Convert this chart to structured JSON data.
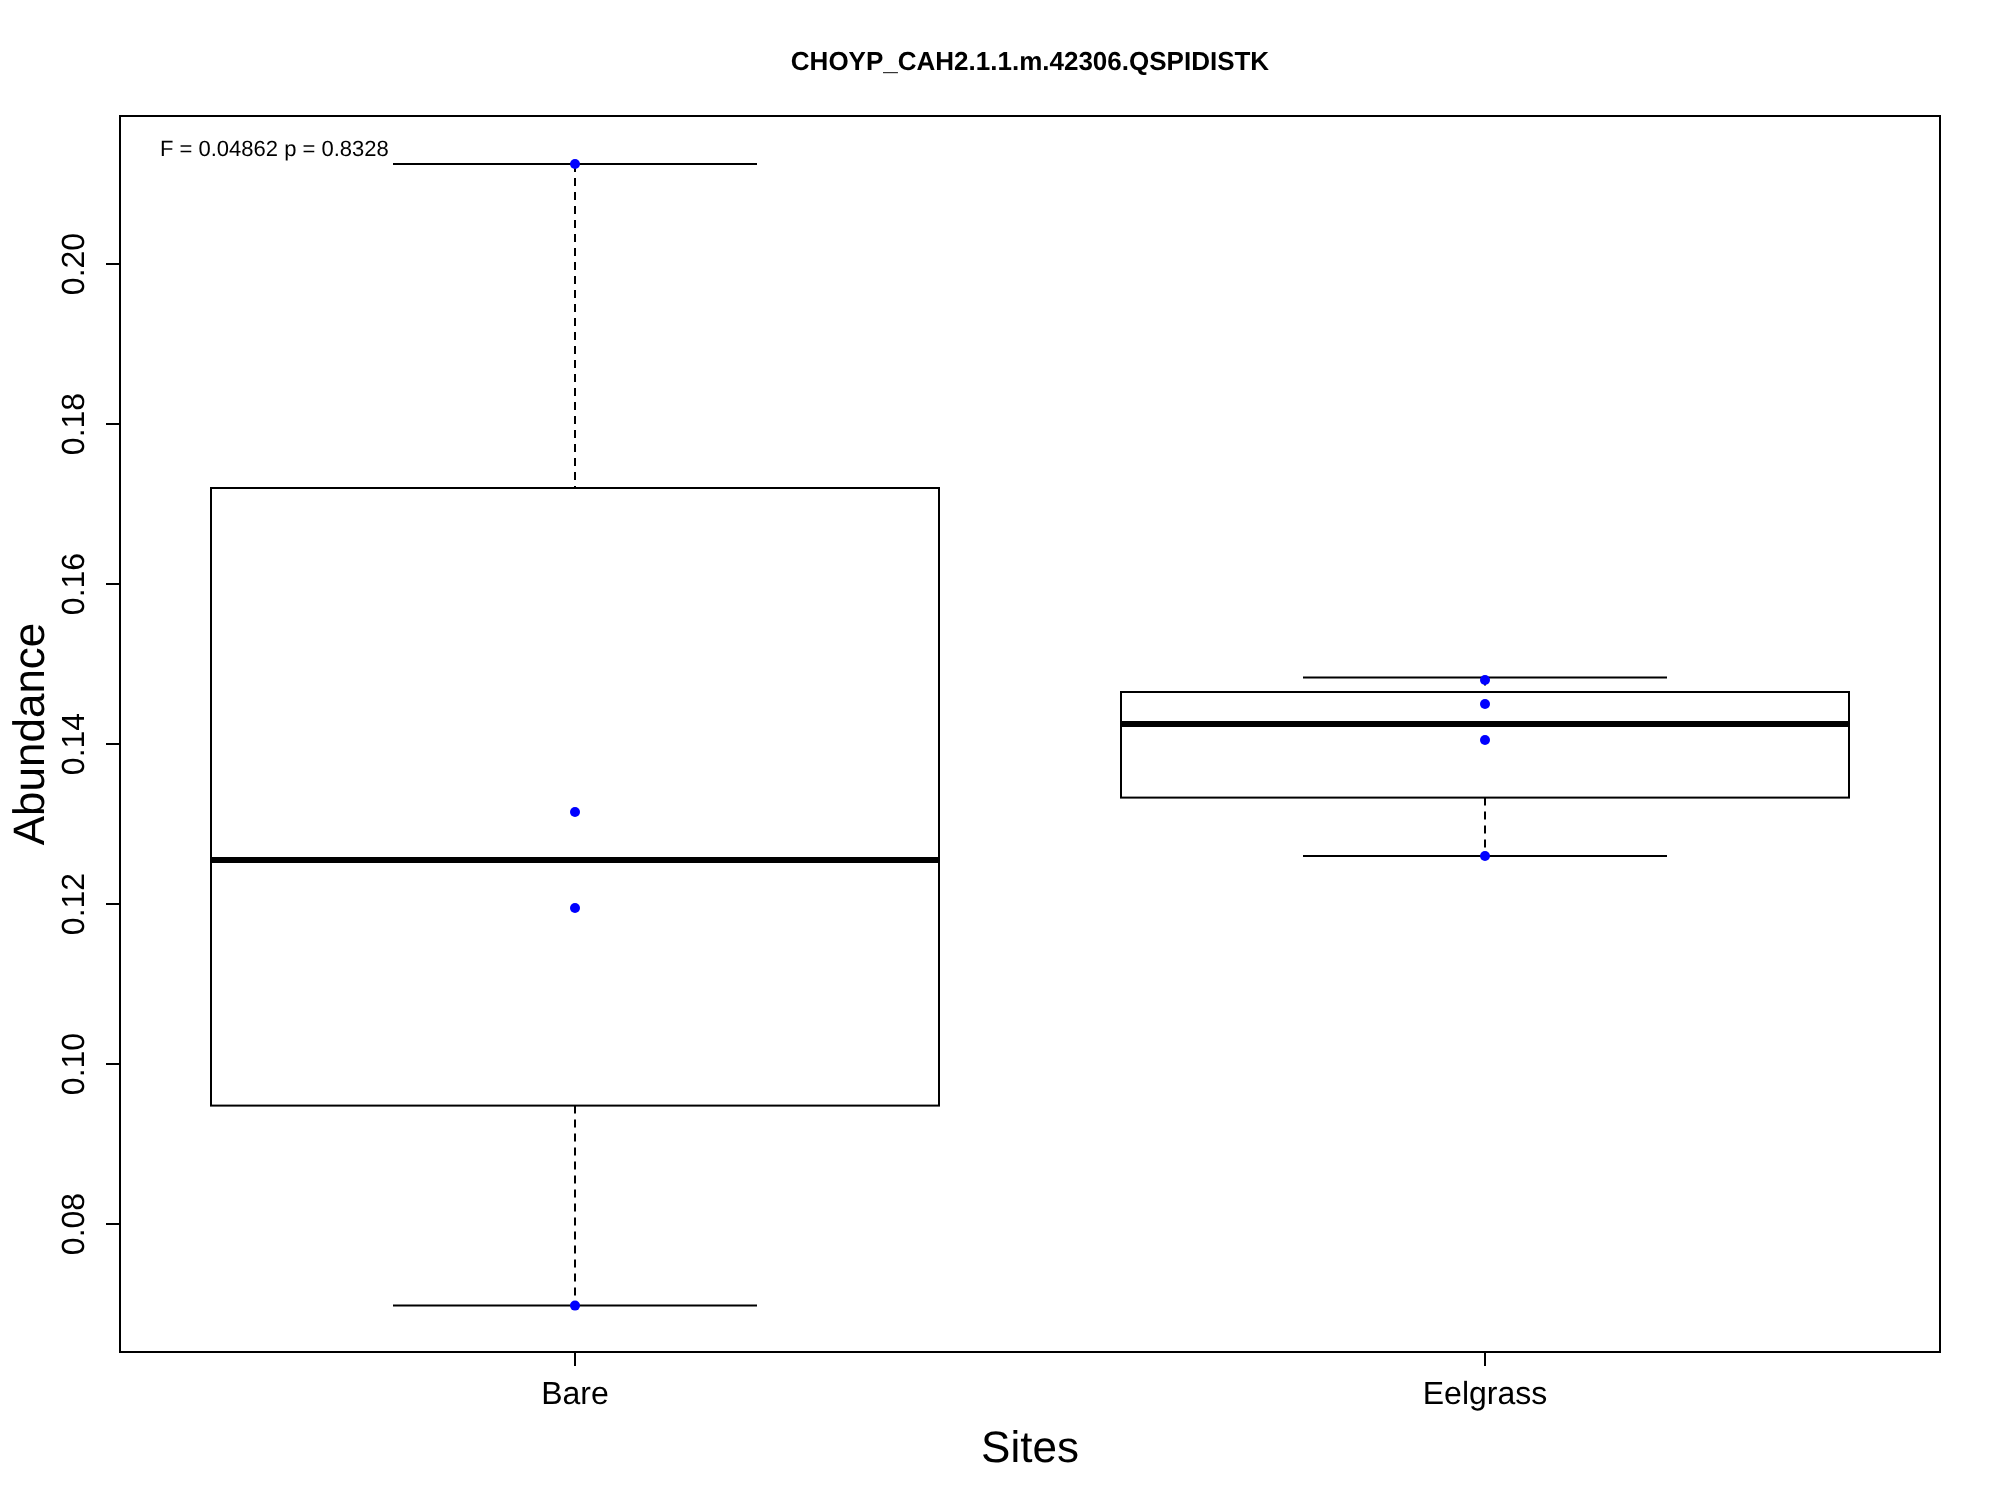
{
  "chart_data": {
    "type": "box",
    "title": "CHOYP_CAH2.1.1.m.42306.QSPIDISTK",
    "xlabel": "Sites",
    "ylabel": "Abundance",
    "categories": [
      "Bare",
      "Eelgrass"
    ],
    "boxes": [
      {
        "low": 0.0698,
        "q1": 0.0948,
        "median": 0.1255,
        "q3": 0.172,
        "high": 0.2125
      },
      {
        "low": 0.126,
        "q1": 0.1333,
        "median": 0.1425,
        "q3": 0.1465,
        "high": 0.1483
      }
    ],
    "ylim": [
      0.064,
      0.2185
    ],
    "yticks": [
      {
        "value": 0.08,
        "label": "0.08"
      },
      {
        "value": 0.1,
        "label": "0.10"
      },
      {
        "value": 0.12,
        "label": "0.12"
      },
      {
        "value": 0.14,
        "label": "0.14"
      },
      {
        "value": 0.16,
        "label": "0.16"
      },
      {
        "value": 0.18,
        "label": "0.18"
      },
      {
        "value": 0.2,
        "label": "0.20"
      }
    ],
    "series": [
      {
        "type": "scatter",
        "color": "#0000ff",
        "x": [
          "Bare",
          "Bare",
          "Bare",
          "Bare",
          "Eelgrass",
          "Eelgrass",
          "Eelgrass",
          "Eelgrass"
        ],
        "values": [
          0.2125,
          0.1315,
          0.1195,
          0.0698,
          0.148,
          0.145,
          0.1405,
          0.126
        ]
      }
    ],
    "annotations": [
      "F = 0.04862 p = 0.8328"
    ],
    "grid": false,
    "marker": "circle"
  }
}
